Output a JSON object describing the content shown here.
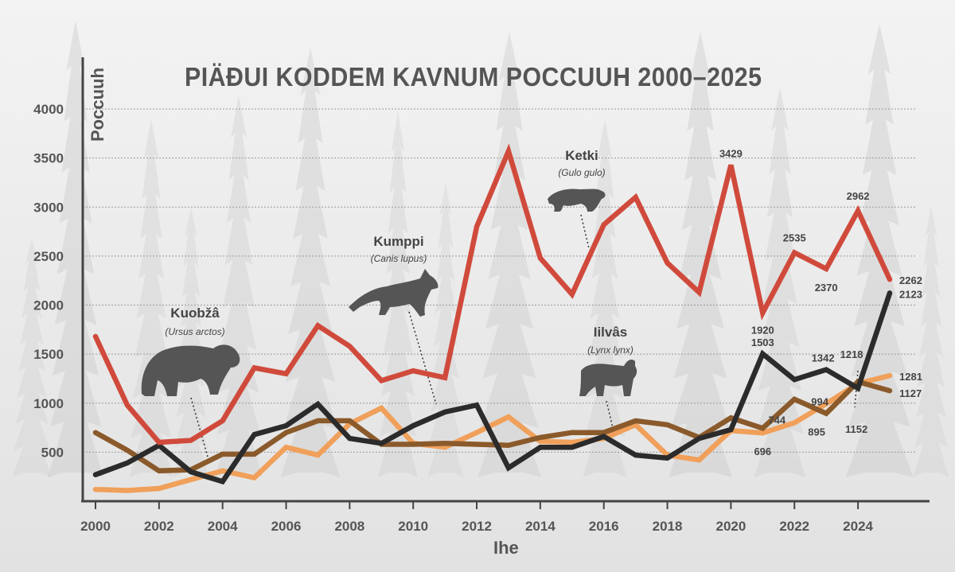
{
  "chart_data": {
    "type": "line",
    "title": "PIÄÐUI KODDEM KAVNUM POCCUUH 2000–2025",
    "xlabel": "Ihe",
    "ylabel": "Poccuuh",
    "ylim": [
      0,
      4000
    ],
    "xlim": [
      2000,
      2025
    ],
    "grid": true,
    "yticks": [
      500,
      1000,
      1500,
      2000,
      2500,
      3000,
      3500,
      4000
    ],
    "xticks": [
      2000,
      2002,
      2004,
      2006,
      2008,
      2010,
      2012,
      2014,
      2016,
      2018,
      2020,
      2022,
      2024
    ],
    "x": [
      2000,
      2001,
      2002,
      2003,
      2004,
      2005,
      2006,
      2007,
      2008,
      2009,
      2010,
      2011,
      2012,
      2013,
      2014,
      2015,
      2016,
      2017,
      2018,
      2019,
      2020,
      2021,
      2022,
      2023,
      2024,
      2025
    ],
    "series": [
      {
        "name": "Ketki",
        "latin": "(Gulo gulo)",
        "color": "#d04a3c",
        "icon": "wolverine-icon",
        "values": [
          1680,
          980,
          600,
          620,
          820,
          1360,
          1300,
          1790,
          1580,
          1230,
          1330,
          1260,
          2800,
          3570,
          2480,
          2110,
          2820,
          3100,
          2430,
          2130,
          3429,
          1920,
          2535,
          2370,
          2962,
          2262
        ]
      },
      {
        "name": "Kumppi",
        "latin": "(Canis lupus)",
        "color": "#2b2b2b",
        "icon": "wolf-icon",
        "values": [
          270,
          390,
          570,
          300,
          200,
          680,
          770,
          990,
          640,
          590,
          770,
          910,
          980,
          340,
          550,
          550,
          660,
          470,
          440,
          640,
          730,
          1503,
          1240,
          1342,
          1152,
          2123
        ]
      },
      {
        "name": "Kuobžâ",
        "latin": "(Ursus arctos)",
        "color": "#8b5a2b",
        "icon": "bear-icon",
        "values": [
          700,
          520,
          310,
          320,
          480,
          480,
          700,
          820,
          820,
          580,
          580,
          590,
          580,
          570,
          650,
          700,
          700,
          820,
          780,
          650,
          850,
          744,
          1040,
          895,
          1218,
          1127
        ]
      },
      {
        "name": "Iilvâs",
        "latin": "(Lynx lynx)",
        "color": "#f0a05a",
        "icon": "lynx-icon",
        "values": [
          120,
          110,
          130,
          220,
          310,
          240,
          550,
          470,
          790,
          950,
          590,
          550,
          700,
          860,
          610,
          600,
          640,
          780,
          470,
          420,
          720,
          696,
          800,
          994,
          1200,
          1281
        ]
      }
    ],
    "annotations": [
      {
        "year": 2020,
        "series": 0,
        "label": "3429"
      },
      {
        "year": 2021,
        "series": 0,
        "label": "1920"
      },
      {
        "year": 2022,
        "series": 0,
        "label": "2535"
      },
      {
        "year": 2023,
        "series": 0,
        "label": "2370"
      },
      {
        "year": 2024,
        "series": 0,
        "label": "2962"
      },
      {
        "year": 2025,
        "series": 0,
        "label": "2262"
      },
      {
        "year": 2025,
        "series": 1,
        "label": "2123"
      },
      {
        "year": 2021,
        "series": 1,
        "label": "1503"
      },
      {
        "year": 2023,
        "series": 1,
        "label": "1342"
      },
      {
        "year": 2024,
        "series": 2,
        "label": "1218"
      },
      {
        "year": 2023,
        "series": 3,
        "label": "994"
      },
      {
        "year": 2025,
        "series": 3,
        "label": "1281"
      },
      {
        "year": 2025,
        "series": 2,
        "label": "1127"
      },
      {
        "year": 2021,
        "series": 2,
        "label": "744"
      },
      {
        "year": 2021,
        "series": 3,
        "label": "696"
      },
      {
        "year": 2023,
        "series": 2,
        "label": "895"
      },
      {
        "year": 2024,
        "series": 1,
        "label": "1152"
      }
    ]
  }
}
